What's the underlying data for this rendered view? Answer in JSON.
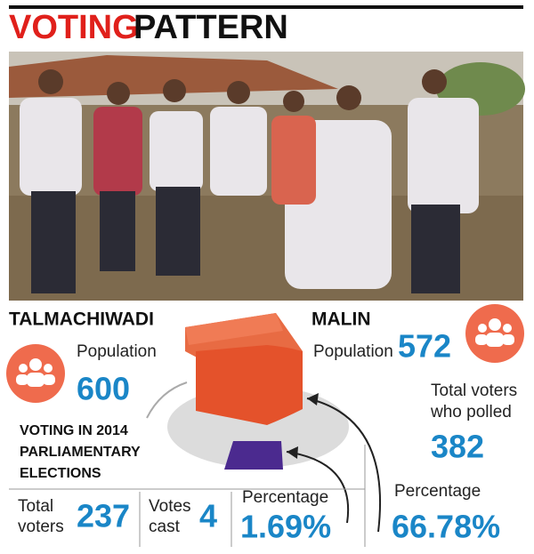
{
  "header": {
    "title_red": "VOTING",
    "title_black": "PATTERN"
  },
  "talmachiwadi": {
    "name": "TALMACHIWADI",
    "population_label": "Population",
    "population": "600",
    "election_label": [
      "VOTING IN 2014",
      "PARLIAMENTARY",
      "ELECTIONS"
    ],
    "total_voters_label": [
      "Total",
      "voters"
    ],
    "total_voters": "237",
    "votes_cast_label": [
      "Votes",
      "cast"
    ],
    "votes_cast": "4",
    "percentage_label": "Percentage",
    "percentage": "1.69%"
  },
  "malin": {
    "name": "MALIN",
    "population_label": "Population",
    "population": "572",
    "polled_label": [
      "Total voters",
      "who polled"
    ],
    "polled": "382",
    "percentage_label": "Percentage",
    "percentage": "66.78%"
  }
}
